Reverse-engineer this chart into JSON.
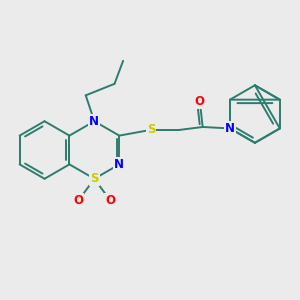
{
  "background_color": "#ebebeb",
  "bond_color": "#2d7d6e",
  "atom_colors": {
    "N": "#0000ff",
    "S": "#cccc00",
    "O": "#ff0000",
    "C": "#2d7d6e"
  },
  "figsize": [
    3.0,
    3.0
  ],
  "dpi": 100
}
